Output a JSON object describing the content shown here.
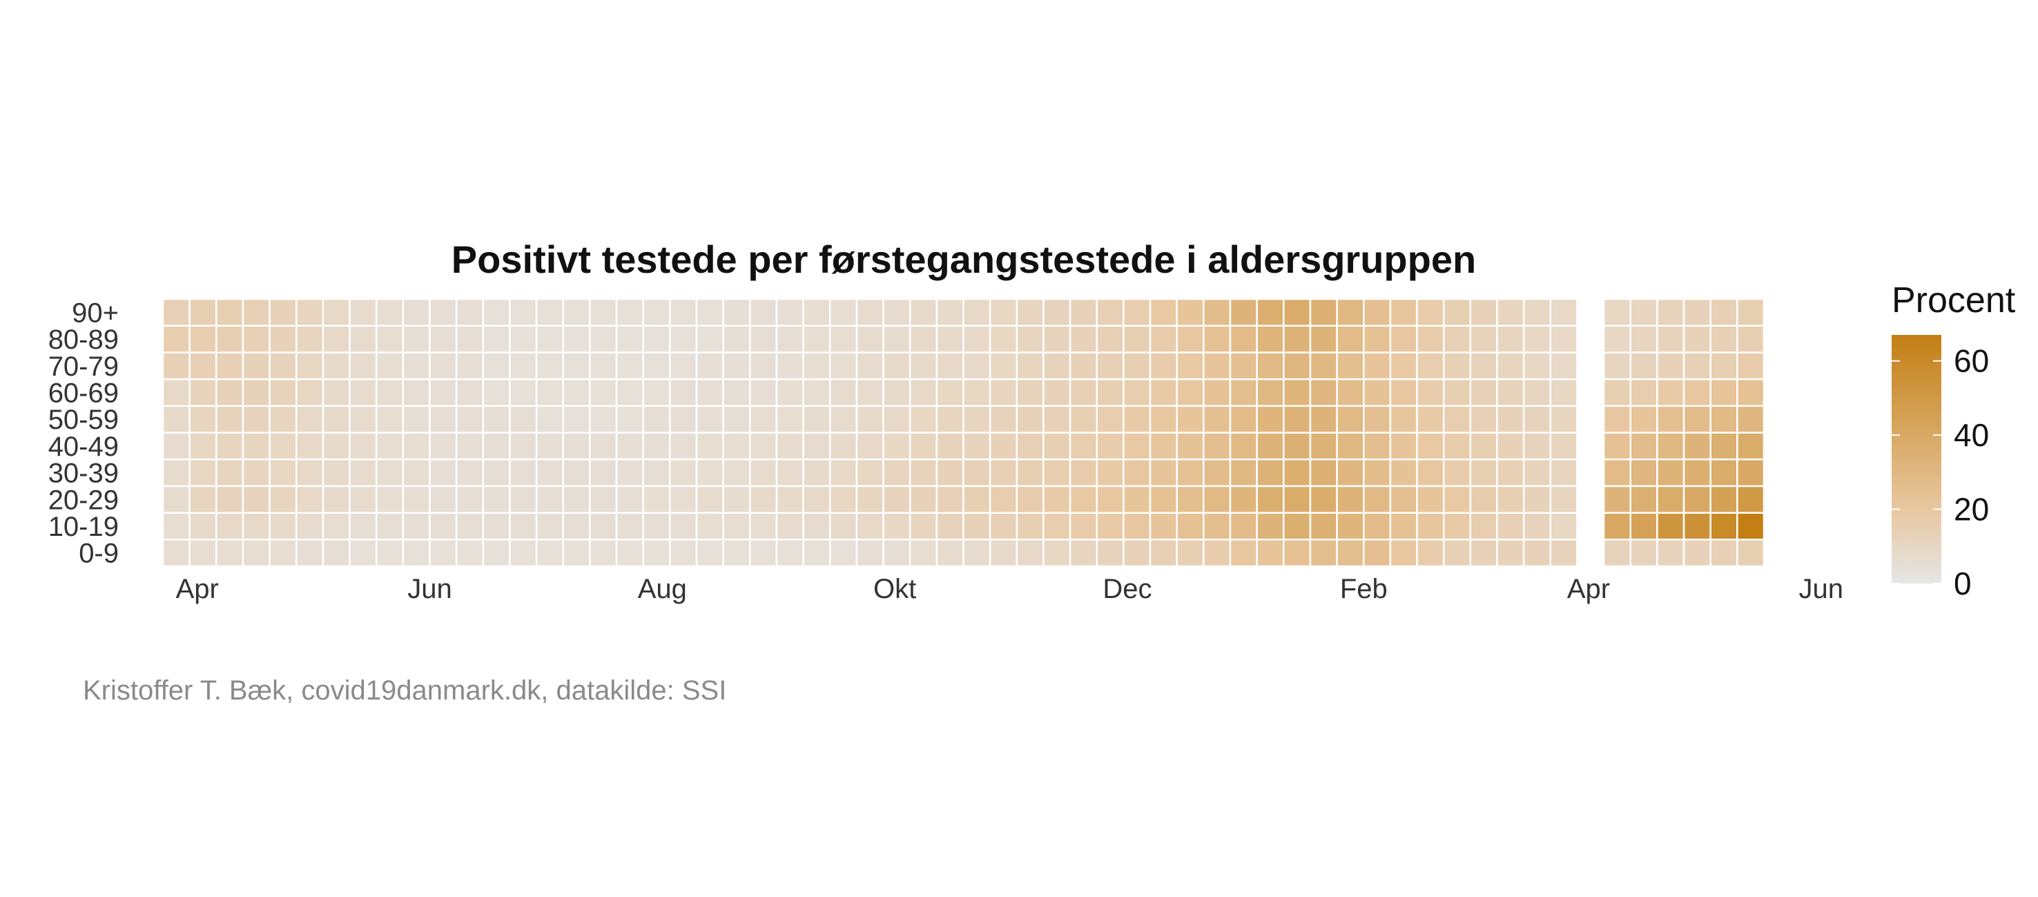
{
  "chart_data": {
    "type": "heatmap",
    "title": "Positivt testede per førstegangstestede i aldersgruppen",
    "y_categories": [
      "0-9",
      "10-19",
      "20-29",
      "30-39",
      "40-49",
      "50-59",
      "60-69",
      "70-79",
      "80-89",
      "90+"
    ],
    "x_tick_labels": [
      "Apr",
      "Jun",
      "Aug",
      "Okt",
      "Dec",
      "Feb",
      "Apr",
      "Jun"
    ],
    "x_unit": "week",
    "x_start": "2020-03-23",
    "n_columns": 60,
    "legend": {
      "title": "Procent",
      "ticks": [
        0,
        20,
        40,
        60
      ],
      "range": [
        0,
        67
      ],
      "placement": "right",
      "colors": {
        "low": "#e6e6e6",
        "mid": "#e8c7a0",
        "high": "#c37f13"
      }
    },
    "missing_weeks": [
      53
    ],
    "values": [
      [
        6,
        6,
        6,
        6,
        6,
        5,
        5,
        4,
        4,
        4,
        4,
        4,
        4,
        4,
        4,
        4,
        4,
        4,
        4,
        4,
        4,
        4,
        4,
        4,
        4,
        4,
        5,
        5,
        6,
        7,
        7,
        8,
        9,
        10,
        11,
        12,
        13,
        14,
        15,
        17,
        20,
        22,
        24,
        26,
        26,
        25,
        20,
        17,
        14,
        13,
        13,
        13,
        12,
        null,
        12,
        12,
        12,
        13,
        14,
        15
      ],
      [
        6,
        8,
        9,
        9,
        8,
        7,
        6,
        5,
        5,
        5,
        5,
        5,
        5,
        5,
        5,
        5,
        5,
        5,
        5,
        5,
        6,
        6,
        6,
        7,
        7,
        8,
        9,
        10,
        11,
        12,
        13,
        14,
        15,
        16,
        17,
        18,
        20,
        22,
        24,
        26,
        28,
        33,
        36,
        35,
        32,
        28,
        24,
        21,
        18,
        16,
        14,
        12,
        10,
        null,
        41,
        44,
        52,
        55,
        60,
        67
      ],
      [
        7,
        11,
        12,
        12,
        11,
        9,
        8,
        7,
        6,
        6,
        5,
        5,
        5,
        5,
        5,
        5,
        5,
        5,
        6,
        6,
        7,
        7,
        8,
        8,
        9,
        10,
        11,
        12,
        13,
        14,
        15,
        16,
        17,
        18,
        19,
        20,
        22,
        24,
        26,
        29,
        32,
        36,
        38,
        37,
        33,
        29,
        25,
        22,
        19,
        17,
        15,
        13,
        11,
        null,
        33,
        35,
        38,
        40,
        45,
        50
      ],
      [
        7,
        10,
        11,
        11,
        10,
        9,
        8,
        7,
        6,
        6,
        5,
        5,
        5,
        5,
        5,
        5,
        5,
        5,
        5,
        6,
        6,
        6,
        7,
        7,
        8,
        9,
        10,
        11,
        12,
        13,
        14,
        14,
        15,
        16,
        17,
        18,
        20,
        22,
        24,
        27,
        30,
        34,
        36,
        35,
        31,
        27,
        23,
        20,
        17,
        15,
        14,
        12,
        11,
        null,
        28,
        31,
        34,
        36,
        38,
        40
      ],
      [
        7,
        10,
        11,
        11,
        10,
        9,
        8,
        7,
        6,
        6,
        5,
        5,
        5,
        5,
        5,
        5,
        5,
        5,
        5,
        5,
        6,
        6,
        6,
        7,
        7,
        8,
        9,
        10,
        11,
        12,
        12,
        13,
        14,
        15,
        16,
        17,
        19,
        21,
        23,
        26,
        29,
        33,
        35,
        34,
        30,
        26,
        22,
        19,
        17,
        15,
        13,
        12,
        11,
        null,
        24,
        27,
        30,
        33,
        36,
        38
      ],
      [
        8,
        11,
        12,
        12,
        11,
        9,
        8,
        7,
        6,
        5,
        5,
        5,
        5,
        5,
        4,
        4,
        4,
        4,
        5,
        5,
        5,
        5,
        6,
        6,
        7,
        7,
        8,
        9,
        10,
        11,
        11,
        12,
        13,
        14,
        15,
        16,
        18,
        20,
        22,
        25,
        28,
        32,
        34,
        33,
        29,
        25,
        21,
        18,
        16,
        14,
        13,
        12,
        11,
        null,
        20,
        22,
        25,
        27,
        29,
        31
      ],
      [
        9,
        12,
        13,
        13,
        12,
        10,
        8,
        7,
        6,
        5,
        5,
        5,
        4,
        4,
        4,
        4,
        4,
        4,
        4,
        5,
        5,
        5,
        5,
        6,
        6,
        7,
        7,
        8,
        9,
        10,
        10,
        11,
        12,
        13,
        14,
        15,
        16,
        18,
        20,
        23,
        26,
        30,
        32,
        31,
        27,
        23,
        20,
        17,
        15,
        13,
        12,
        11,
        10,
        null,
        15,
        16,
        18,
        20,
        22,
        24
      ],
      [
        14,
        14,
        14,
        13,
        12,
        10,
        8,
        7,
        6,
        5,
        5,
        5,
        4,
        4,
        4,
        4,
        4,
        4,
        4,
        4,
        5,
        5,
        5,
        5,
        6,
        6,
        7,
        8,
        8,
        9,
        9,
        10,
        11,
        12,
        13,
        14,
        15,
        17,
        19,
        22,
        25,
        29,
        31,
        30,
        26,
        22,
        19,
        16,
        14,
        12,
        11,
        10,
        9,
        null,
        11,
        12,
        13,
        14,
        15,
        17
      ],
      [
        16,
        16,
        15,
        14,
        13,
        11,
        9,
        7,
        6,
        5,
        5,
        5,
        4,
        4,
        4,
        4,
        4,
        4,
        4,
        4,
        4,
        5,
        5,
        5,
        6,
        6,
        7,
        7,
        8,
        8,
        9,
        10,
        11,
        12,
        13,
        14,
        15,
        17,
        20,
        24,
        28,
        32,
        34,
        33,
        28,
        24,
        20,
        17,
        14,
        12,
        11,
        10,
        9,
        null,
        10,
        11,
        12,
        13,
        14,
        15
      ],
      [
        14,
        15,
        15,
        14,
        13,
        11,
        9,
        7,
        6,
        5,
        5,
        5,
        4,
        4,
        4,
        4,
        4,
        4,
        4,
        4,
        4,
        5,
        5,
        5,
        6,
        6,
        7,
        7,
        8,
        8,
        9,
        10,
        11,
        12,
        13,
        14,
        16,
        19,
        22,
        27,
        33,
        36,
        38,
        35,
        30,
        25,
        21,
        17,
        15,
        13,
        11,
        10,
        9,
        null,
        10,
        11,
        12,
        13,
        14,
        15
      ]
    ]
  },
  "caption": "Kristoffer T. Bæk, covid19danmark.dk, datakilde: SSI"
}
